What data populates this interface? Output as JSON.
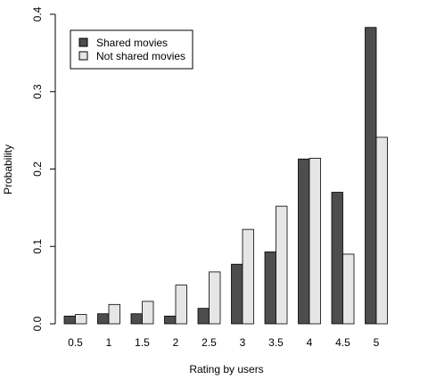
{
  "chart_data": {
    "type": "bar",
    "title": "",
    "xlabel": "Rating by users",
    "ylabel": "Probability",
    "ylim": [
      0,
      0.4
    ],
    "yticks": [
      "0.0",
      "0.1",
      "0.2",
      "0.3",
      "0.4"
    ],
    "ytick_values": [
      0,
      0.1,
      0.2,
      0.3,
      0.4
    ],
    "categories": [
      "0.5",
      "1",
      "1.5",
      "2",
      "2.5",
      "3",
      "3.5",
      "4",
      "4.5",
      "5"
    ],
    "grid": false,
    "legend_position": "top-left",
    "series": [
      {
        "name": "Shared movies",
        "color": "#4d4d4d",
        "values": [
          0.01,
          0.013,
          0.013,
          0.01,
          0.02,
          0.077,
          0.093,
          0.213,
          0.17,
          0.383
        ]
      },
      {
        "name": "Not shared movies",
        "color": "#e6e6e6",
        "values": [
          0.012,
          0.025,
          0.029,
          0.05,
          0.067,
          0.122,
          0.152,
          0.214,
          0.09,
          0.241
        ]
      }
    ]
  }
}
